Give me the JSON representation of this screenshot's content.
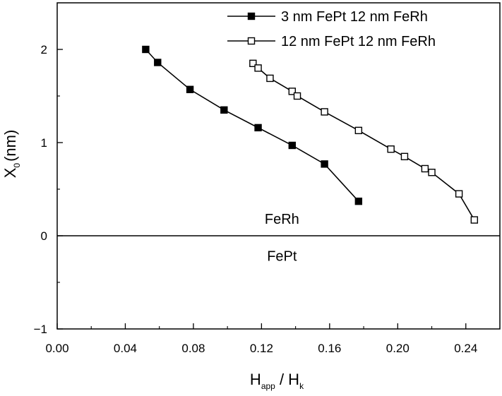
{
  "chart_data": {
    "type": "line",
    "xlabel": {
      "main": "H",
      "sub1": "app",
      "sep": " / H",
      "sub2": "k"
    },
    "ylabel": {
      "main": "X",
      "sub": "0",
      "unit": "(nm)"
    },
    "xlim": [
      0.0,
      0.26
    ],
    "ylim": [
      -1,
      2.5
    ],
    "xticks": [
      0.0,
      0.04,
      0.08,
      0.12,
      0.16,
      0.2,
      0.24
    ],
    "xtick_labels": [
      "0.00",
      "0.04",
      "0.08",
      "0.12",
      "0.16",
      "0.20",
      "0.24"
    ],
    "yticks": [
      -1,
      0,
      1,
      2
    ],
    "ytick_labels": [
      "−1",
      "0",
      "1",
      "2"
    ],
    "legend_position": "top-right",
    "horizontal_reference_line": 0,
    "annotations": [
      {
        "text": "FeRh",
        "x": 0.132,
        "y": 0.13
      },
      {
        "text": "FePt",
        "x": 0.132,
        "y": -0.27
      }
    ],
    "series": [
      {
        "name": "3 nm FePt 12 nm FeRh",
        "marker": "filled-square",
        "x": [
          0.052,
          0.059,
          0.078,
          0.098,
          0.118,
          0.138,
          0.157,
          0.177
        ],
        "y": [
          2.0,
          1.86,
          1.57,
          1.35,
          1.16,
          0.97,
          0.77,
          0.37
        ]
      },
      {
        "name": "12 nm FePt 12 nm FeRh",
        "marker": "open-square",
        "x": [
          0.115,
          0.118,
          0.125,
          0.138,
          0.141,
          0.157,
          0.177,
          0.196,
          0.204,
          0.216,
          0.22,
          0.236,
          0.245
        ],
        "y": [
          1.85,
          1.8,
          1.69,
          1.55,
          1.5,
          1.33,
          1.13,
          0.93,
          0.85,
          0.72,
          0.68,
          0.45,
          0.17
        ]
      }
    ]
  }
}
